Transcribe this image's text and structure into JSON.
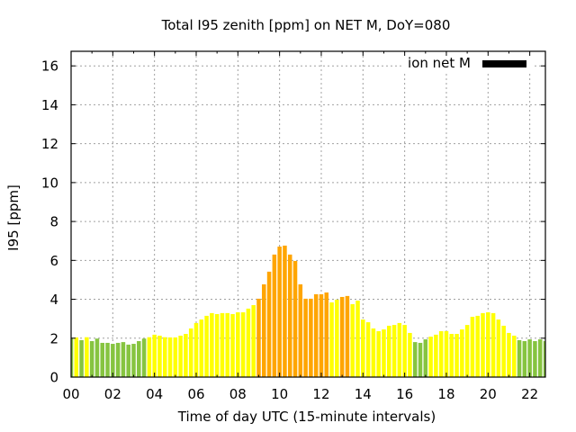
{
  "chart_data": {
    "type": "bar",
    "title": "Total I95 zenith [ppm] on NET M, DoY=080",
    "xlabel": "Time of day UTC (15-minute intervals)",
    "ylabel": "I95 [ppm]",
    "x_start_hour": 0,
    "interval_hours": 0.25,
    "values": [
      1.98,
      2.04,
      1.9,
      2.05,
      1.85,
      1.98,
      1.76,
      1.76,
      1.71,
      1.76,
      1.8,
      1.67,
      1.71,
      1.85,
      1.98,
      2.05,
      2.18,
      2.13,
      2.05,
      2.04,
      2.04,
      2.13,
      2.22,
      2.5,
      2.78,
      2.96,
      3.15,
      3.29,
      3.24,
      3.29,
      3.29,
      3.24,
      3.33,
      3.33,
      3.52,
      3.7,
      4.03,
      4.77,
      5.42,
      6.3,
      6.71,
      6.76,
      6.3,
      5.97,
      4.77,
      4.03,
      4.03,
      4.26,
      4.26,
      4.35,
      3.84,
      3.98,
      4.12,
      4.17,
      3.75,
      3.93,
      2.96,
      2.82,
      2.5,
      2.36,
      2.45,
      2.64,
      2.68,
      2.78,
      2.68,
      2.27,
      1.8,
      1.76,
      1.94,
      2.08,
      2.18,
      2.36,
      2.36,
      2.22,
      2.22,
      2.45,
      2.68,
      3.1,
      3.15,
      3.29,
      3.33,
      3.29,
      2.96,
      2.64,
      2.27,
      2.13,
      1.9,
      1.85,
      1.94,
      1.85,
      1.94,
      1.85
    ],
    "xlim": [
      0,
      22.75
    ],
    "ylim": [
      0,
      16.75
    ],
    "xticks": {
      "values": [
        0,
        2,
        4,
        6,
        8,
        10,
        12,
        14,
        16,
        18,
        20,
        22
      ],
      "labels": [
        "00",
        "02",
        "04",
        "06",
        "08",
        "10",
        "12",
        "14",
        "16",
        "18",
        "20",
        "22"
      ]
    },
    "x_minor_tick_step": 1,
    "yticks": {
      "values": [
        0,
        2,
        4,
        6,
        8,
        10,
        12,
        14,
        16
      ],
      "labels": [
        "0",
        "2",
        "4",
        "6",
        "8",
        "10",
        "12",
        "14",
        "16"
      ]
    },
    "grid": true,
    "grid_color": "#a0a0a0",
    "legend": {
      "label": "ion net M",
      "position": "top-right",
      "color": "#000000"
    },
    "color_thresholds": [
      2,
      4
    ],
    "colors": {
      "low": "#86c440",
      "medium": "#ffff00",
      "high": "#ffa500"
    }
  }
}
